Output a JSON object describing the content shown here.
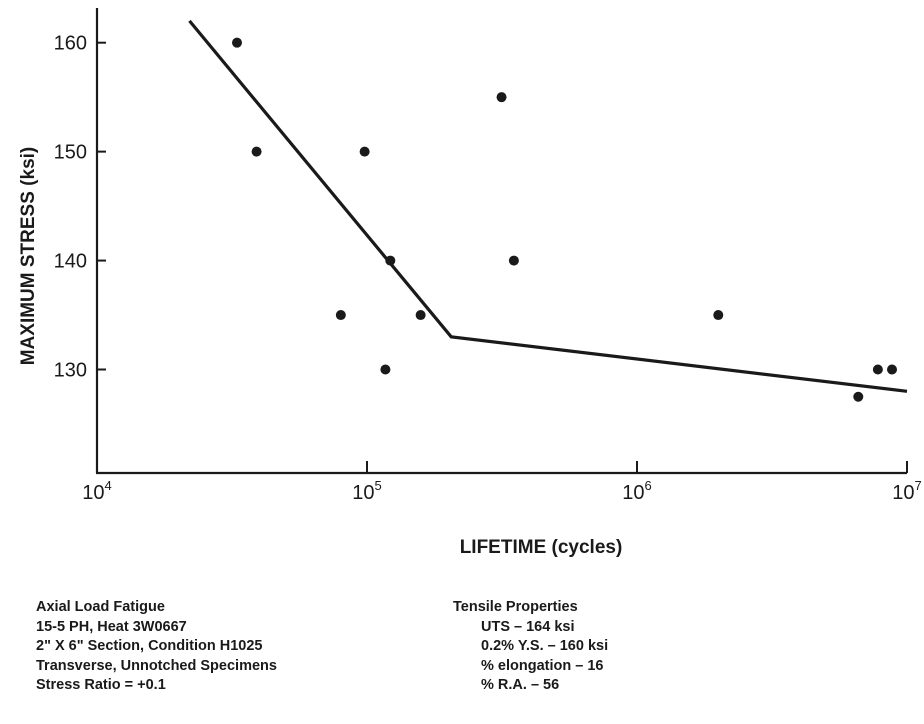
{
  "chart_data": {
    "type": "scatter",
    "xlabel": "LIFETIME (cycles)",
    "ylabel": "MAXIMUM STRESS (ksi)",
    "x_scale": "log",
    "xlim": [
      10000,
      10000000
    ],
    "ylim": [
      120.5,
      163
    ],
    "x_ticks": [
      {
        "value": 10000,
        "base": "10",
        "exp": "4"
      },
      {
        "value": 100000,
        "base": "10",
        "exp": "5"
      },
      {
        "value": 1000000,
        "base": "10",
        "exp": "6"
      },
      {
        "value": 10000000,
        "base": "10",
        "exp": "7"
      }
    ],
    "y_ticks": [
      130,
      140,
      150,
      160
    ],
    "grid": false,
    "points": [
      {
        "x": 33000,
        "y": 160
      },
      {
        "x": 39000,
        "y": 150
      },
      {
        "x": 80000,
        "y": 135
      },
      {
        "x": 98000,
        "y": 150
      },
      {
        "x": 117000,
        "y": 130
      },
      {
        "x": 122000,
        "y": 140
      },
      {
        "x": 158000,
        "y": 135
      },
      {
        "x": 315000,
        "y": 155
      },
      {
        "x": 350000,
        "y": 140
      },
      {
        "x": 2000000,
        "y": 135
      },
      {
        "x": 6600000,
        "y": 127.5
      },
      {
        "x": 7800000,
        "y": 130
      },
      {
        "x": 8800000,
        "y": 130
      }
    ],
    "fit_line": [
      {
        "x": 22000,
        "y": 162
      },
      {
        "x": 205000,
        "y": 133
      },
      {
        "x": 10000000,
        "y": 128
      }
    ]
  },
  "notes": {
    "left": [
      "Axial Load Fatigue",
      "15-5 PH, Heat 3W0667",
      "2\" X 6\" Section, Condition H1025",
      "Transverse, Unnotched Specimens",
      "Stress Ratio = +0.1"
    ],
    "right_title": "Tensile Properties",
    "right": [
      "UTS – 164 ksi",
      "0.2% Y.S. – 160 ksi",
      "% elongation – 16",
      "% R.A. – 56"
    ]
  }
}
